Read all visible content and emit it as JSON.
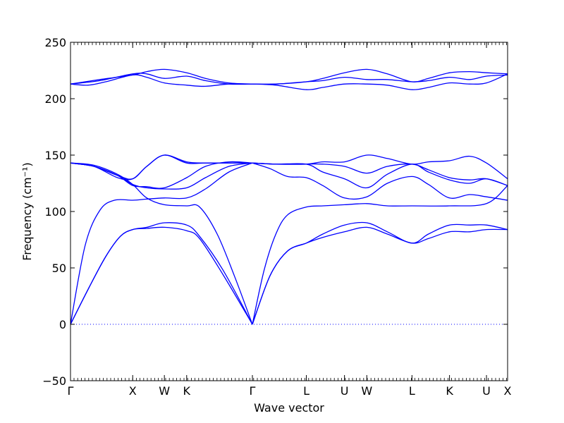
{
  "chart_data": {
    "type": "line",
    "title": "",
    "xlabel": "Wave vector",
    "ylabel": "Frequency (cm⁻¹)",
    "ylim": [
      -50,
      250
    ],
    "yticks": [
      -50,
      0,
      50,
      100,
      150,
      200,
      250
    ],
    "xlim": [
      0,
      7.45
    ],
    "x_ticks": [
      {
        "x": 0.0,
        "label": "Γ"
      },
      {
        "x": 1.06,
        "label": "X"
      },
      {
        "x": 1.6,
        "label": "W"
      },
      {
        "x": 1.98,
        "label": "K"
      },
      {
        "x": 3.1,
        "label": "Γ"
      },
      {
        "x": 4.02,
        "label": "L"
      },
      {
        "x": 4.67,
        "label": "U"
      },
      {
        "x": 5.05,
        "label": "W"
      },
      {
        "x": 5.82,
        "label": "L"
      },
      {
        "x": 6.46,
        "label": "K"
      },
      {
        "x": 7.09,
        "label": "U"
      },
      {
        "x": 7.45,
        "label": "X"
      }
    ],
    "zero_line": {
      "y": 0,
      "style": "dotted"
    },
    "grid": false,
    "line_color": "#0000ff",
    "series": [
      {
        "values": [
          [
            0,
            0
          ],
          [
            0.25,
            70
          ],
          [
            0.5,
            101
          ],
          [
            0.75,
            110
          ],
          [
            1.06,
            110
          ],
          [
            1.3,
            111
          ],
          [
            1.6,
            112
          ],
          [
            1.98,
            112
          ],
          [
            2.3,
            120
          ],
          [
            2.7,
            135
          ],
          [
            3.1,
            143
          ]
        ]
      },
      {
        "values": [
          [
            0,
            0
          ],
          [
            0.3,
            31
          ],
          [
            0.6,
            60
          ],
          [
            0.85,
            78
          ],
          [
            1.06,
            84
          ],
          [
            1.3,
            86
          ],
          [
            1.6,
            90
          ],
          [
            1.98,
            88
          ],
          [
            2.2,
            78
          ],
          [
            2.6,
            48
          ],
          [
            3.1,
            0
          ]
        ]
      },
      {
        "values": [
          [
            0,
            0
          ],
          [
            0.3,
            31
          ],
          [
            0.6,
            60
          ],
          [
            0.85,
            78
          ],
          [
            1.06,
            84
          ],
          [
            1.3,
            85
          ],
          [
            1.6,
            86
          ],
          [
            1.98,
            83
          ],
          [
            2.2,
            76
          ],
          [
            2.6,
            44
          ],
          [
            3.1,
            0
          ]
        ]
      },
      {
        "values": [
          [
            0,
            143
          ],
          [
            0.4,
            141
          ],
          [
            0.8,
            133
          ],
          [
            1.06,
            124
          ],
          [
            1.3,
            112
          ],
          [
            1.6,
            106
          ],
          [
            1.98,
            105
          ],
          [
            2.2,
            104
          ],
          [
            2.5,
            80
          ],
          [
            2.8,
            42
          ],
          [
            3.1,
            0
          ]
        ]
      },
      {
        "values": [
          [
            0,
            143
          ],
          [
            0.4,
            140
          ],
          [
            0.8,
            132
          ],
          [
            1.06,
            123
          ],
          [
            1.3,
            122
          ],
          [
            1.6,
            121
          ],
          [
            1.98,
            130
          ],
          [
            2.3,
            140
          ],
          [
            2.7,
            144
          ],
          [
            3.1,
            143
          ]
        ]
      },
      {
        "values": [
          [
            0,
            143
          ],
          [
            0.4,
            140
          ],
          [
            0.8,
            130
          ],
          [
            1.06,
            129
          ],
          [
            1.3,
            140
          ],
          [
            1.6,
            150
          ],
          [
            1.98,
            143
          ],
          [
            2.3,
            143
          ],
          [
            2.7,
            143
          ],
          [
            3.1,
            143
          ]
        ]
      },
      {
        "values": [
          [
            0,
            143
          ],
          [
            0.4,
            140
          ],
          [
            0.8,
            132
          ],
          [
            1.06,
            124
          ],
          [
            1.3,
            121
          ],
          [
            1.6,
            120
          ],
          [
            1.98,
            121
          ],
          [
            2.3,
            130
          ],
          [
            2.7,
            140
          ],
          [
            3.1,
            143
          ]
        ]
      },
      {
        "values": [
          [
            0,
            143
          ],
          [
            0.4,
            140
          ],
          [
            0.8,
            132
          ],
          [
            1.06,
            129
          ],
          [
            1.3,
            140
          ],
          [
            1.6,
            150
          ],
          [
            1.98,
            144
          ],
          [
            2.3,
            143
          ],
          [
            2.7,
            143
          ],
          [
            3.1,
            143
          ]
        ]
      },
      {
        "values": [
          [
            0,
            213
          ],
          [
            0.3,
            212
          ],
          [
            0.6,
            215
          ],
          [
            1.06,
            221
          ],
          [
            1.3,
            219
          ],
          [
            1.6,
            214
          ],
          [
            1.98,
            212
          ],
          [
            2.3,
            211
          ],
          [
            2.7,
            213
          ],
          [
            3.1,
            213
          ]
        ]
      },
      {
        "values": [
          [
            0,
            213
          ],
          [
            0.5,
            216
          ],
          [
            1.06,
            222
          ],
          [
            1.3,
            222
          ],
          [
            1.6,
            218
          ],
          [
            1.98,
            220
          ],
          [
            2.3,
            216
          ],
          [
            2.7,
            213
          ],
          [
            3.1,
            213
          ]
        ]
      },
      {
        "values": [
          [
            0,
            213
          ],
          [
            0.5,
            217
          ],
          [
            1.06,
            221
          ],
          [
            1.3,
            224
          ],
          [
            1.6,
            226
          ],
          [
            1.98,
            223
          ],
          [
            2.3,
            218
          ],
          [
            2.7,
            214
          ],
          [
            3.1,
            213
          ]
        ]
      },
      {
        "values": [
          [
            3.1,
            0
          ],
          [
            3.4,
            43
          ],
          [
            3.7,
            65
          ],
          [
            4.02,
            72
          ],
          [
            4.3,
            77
          ],
          [
            4.67,
            82
          ],
          [
            5.05,
            86
          ],
          [
            5.4,
            80
          ],
          [
            5.82,
            72
          ],
          [
            6.1,
            76
          ],
          [
            6.46,
            82
          ],
          [
            6.8,
            82
          ],
          [
            7.09,
            84
          ],
          [
            7.45,
            84
          ]
        ]
      },
      {
        "values": [
          [
            3.1,
            0
          ],
          [
            3.4,
            43
          ],
          [
            3.7,
            65
          ],
          [
            4.02,
            72
          ],
          [
            4.3,
            80
          ],
          [
            4.67,
            88
          ],
          [
            5.05,
            90
          ],
          [
            5.4,
            82
          ],
          [
            5.82,
            72
          ],
          [
            6.1,
            80
          ],
          [
            6.46,
            88
          ],
          [
            6.8,
            88
          ],
          [
            7.09,
            88
          ],
          [
            7.45,
            84
          ]
        ]
      },
      {
        "values": [
          [
            3.1,
            0
          ],
          [
            3.3,
            48
          ],
          [
            3.5,
            80
          ],
          [
            3.7,
            97
          ],
          [
            4.02,
            104
          ],
          [
            4.3,
            105
          ],
          [
            4.67,
            106
          ],
          [
            5.05,
            107
          ],
          [
            5.4,
            105
          ],
          [
            5.82,
            105
          ],
          [
            6.46,
            105
          ],
          [
            7.09,
            107
          ],
          [
            7.45,
            123
          ]
        ]
      },
      {
        "values": [
          [
            3.1,
            143
          ],
          [
            3.4,
            138
          ],
          [
            3.7,
            131
          ],
          [
            4.02,
            130
          ],
          [
            4.3,
            123
          ],
          [
            4.67,
            112
          ],
          [
            5.05,
            113
          ],
          [
            5.4,
            125
          ],
          [
            5.82,
            131
          ],
          [
            6.1,
            124
          ],
          [
            6.46,
            112
          ],
          [
            6.8,
            115
          ],
          [
            7.09,
            113
          ],
          [
            7.45,
            110
          ]
        ]
      },
      {
        "values": [
          [
            3.1,
            143
          ],
          [
            3.5,
            142
          ],
          [
            4.02,
            142
          ],
          [
            4.3,
            135
          ],
          [
            4.67,
            129
          ],
          [
            5.05,
            121
          ],
          [
            5.4,
            133
          ],
          [
            5.82,
            142
          ],
          [
            6.1,
            135
          ],
          [
            6.46,
            128
          ],
          [
            6.8,
            125
          ],
          [
            7.09,
            129
          ],
          [
            7.45,
            123
          ]
        ]
      },
      {
        "values": [
          [
            3.1,
            143
          ],
          [
            3.5,
            142
          ],
          [
            4.02,
            142
          ],
          [
            4.3,
            142
          ],
          [
            4.67,
            140
          ],
          [
            5.05,
            134
          ],
          [
            5.4,
            140
          ],
          [
            5.82,
            142
          ],
          [
            6.1,
            137
          ],
          [
            6.46,
            130
          ],
          [
            6.8,
            128
          ],
          [
            7.09,
            129
          ],
          [
            7.45,
            123
          ]
        ]
      },
      {
        "values": [
          [
            3.1,
            143
          ],
          [
            3.5,
            142
          ],
          [
            4.02,
            142
          ],
          [
            4.3,
            144
          ],
          [
            4.67,
            144
          ],
          [
            5.05,
            150
          ],
          [
            5.4,
            147
          ],
          [
            5.82,
            142
          ],
          [
            6.1,
            144
          ],
          [
            6.46,
            145
          ],
          [
            6.8,
            149
          ],
          [
            7.09,
            143
          ],
          [
            7.45,
            129
          ]
        ]
      },
      {
        "values": [
          [
            3.1,
            213
          ],
          [
            3.5,
            212
          ],
          [
            4.02,
            208
          ],
          [
            4.3,
            210
          ],
          [
            4.67,
            213
          ],
          [
            5.05,
            213
          ],
          [
            5.4,
            212
          ],
          [
            5.82,
            208
          ],
          [
            6.1,
            210
          ],
          [
            6.46,
            214
          ],
          [
            6.8,
            213
          ],
          [
            7.09,
            214
          ],
          [
            7.45,
            222
          ]
        ]
      },
      {
        "values": [
          [
            3.1,
            213
          ],
          [
            3.5,
            213
          ],
          [
            4.02,
            215
          ],
          [
            4.3,
            216
          ],
          [
            4.67,
            219
          ],
          [
            5.05,
            217
          ],
          [
            5.4,
            217
          ],
          [
            5.82,
            215
          ],
          [
            6.1,
            216
          ],
          [
            6.46,
            219
          ],
          [
            6.8,
            217
          ],
          [
            7.09,
            220
          ],
          [
            7.45,
            221
          ]
        ]
      },
      {
        "values": [
          [
            3.1,
            213
          ],
          [
            3.5,
            213
          ],
          [
            4.02,
            215
          ],
          [
            4.3,
            218
          ],
          [
            4.67,
            223
          ],
          [
            5.05,
            226
          ],
          [
            5.4,
            222
          ],
          [
            5.82,
            215
          ],
          [
            6.1,
            218
          ],
          [
            6.46,
            223
          ],
          [
            6.8,
            224
          ],
          [
            7.09,
            223
          ],
          [
            7.45,
            222
          ]
        ]
      }
    ]
  }
}
